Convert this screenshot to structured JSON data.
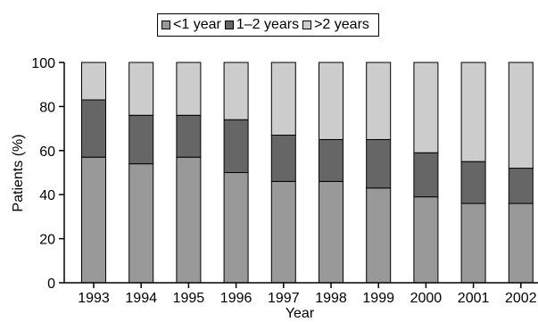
{
  "chart_data": {
    "type": "bar",
    "stacked": true,
    "categories": [
      "1993",
      "1994",
      "1995",
      "1996",
      "1997",
      "1998",
      "1999",
      "2000",
      "2001",
      "2002"
    ],
    "series": [
      {
        "name": "<1 year",
        "color": "#999999",
        "values": [
          57,
          54,
          57,
          50,
          46,
          46,
          43,
          39,
          36,
          36
        ]
      },
      {
        "name": "1–2 years",
        "color": "#666666",
        "values": [
          26,
          22,
          19,
          24,
          21,
          19,
          22,
          20,
          19,
          16
        ]
      },
      {
        "name": ">2 years",
        "color": "#cccccc",
        "values": [
          17,
          24,
          24,
          26,
          33,
          35,
          35,
          41,
          45,
          48
        ]
      }
    ],
    "xlabel": "Year",
    "ylabel": "Patients (%)",
    "ylim": [
      0,
      100
    ],
    "yticks": [
      0,
      20,
      40,
      60,
      80,
      100
    ],
    "legend_position": "top",
    "grid": false
  }
}
